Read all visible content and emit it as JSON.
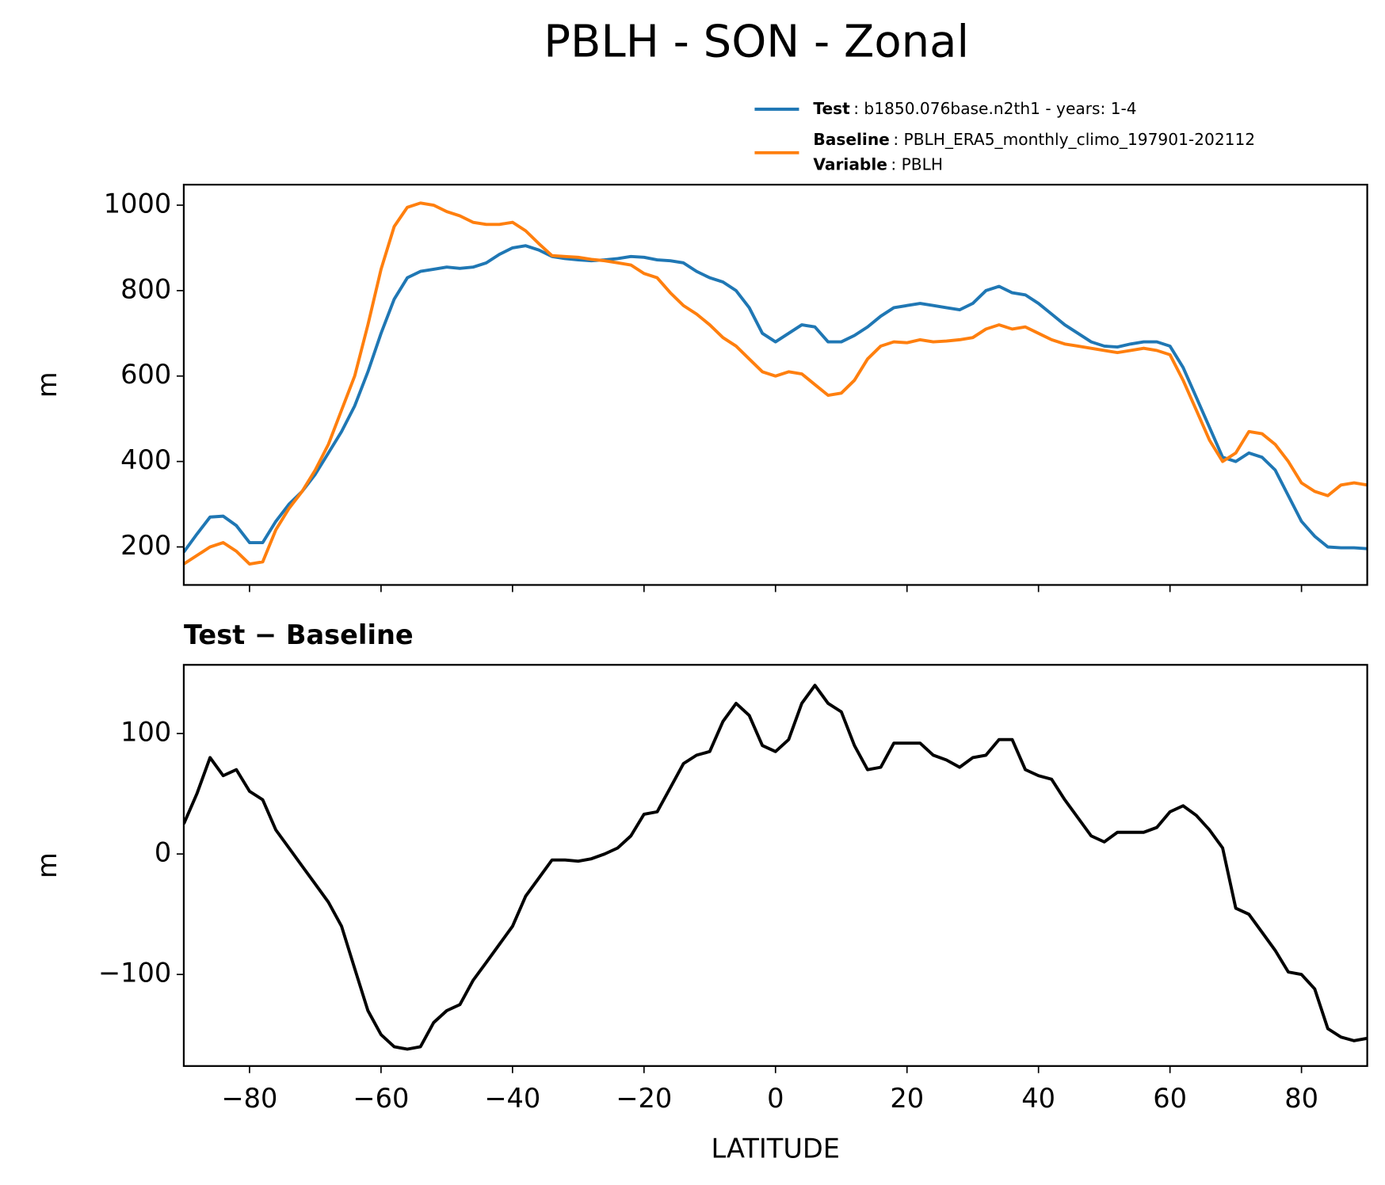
{
  "title": "PBLH - SON - Zonal",
  "chart_data": [
    {
      "type": "line",
      "ylabel": "m",
      "x": [
        -90,
        -88,
        -86,
        -84,
        -82,
        -80,
        -78,
        -76,
        -74,
        -72,
        -70,
        -68,
        -66,
        -64,
        -62,
        -60,
        -58,
        -56,
        -54,
        -52,
        -50,
        -48,
        -46,
        -44,
        -42,
        -40,
        -38,
        -36,
        -34,
        -32,
        -30,
        -28,
        -26,
        -24,
        -22,
        -20,
        -18,
        -16,
        -14,
        -12,
        -10,
        -8,
        -6,
        -4,
        -2,
        0,
        2,
        4,
        6,
        8,
        10,
        12,
        14,
        16,
        18,
        20,
        22,
        24,
        26,
        28,
        30,
        32,
        34,
        36,
        38,
        40,
        42,
        44,
        46,
        48,
        50,
        52,
        54,
        56,
        58,
        60,
        62,
        64,
        66,
        68,
        70,
        72,
        74,
        76,
        78,
        80,
        82,
        84,
        86,
        88,
        90
      ],
      "series": [
        {
          "name": "Test",
          "detail": ": b1850.076base.n2th1 - years: 1-4",
          "color": "#1f77b4",
          "values": [
            188,
            230,
            270,
            272,
            250,
            210,
            210,
            260,
            300,
            330,
            370,
            420,
            470,
            530,
            610,
            700,
            780,
            830,
            845,
            850,
            855,
            852,
            855,
            865,
            885,
            900,
            905,
            895,
            880,
            875,
            872,
            870,
            872,
            875,
            880,
            878,
            872,
            870,
            865,
            845,
            830,
            820,
            800,
            760,
            700,
            680,
            700,
            720,
            715,
            680,
            680,
            695,
            715,
            740,
            760,
            765,
            770,
            765,
            760,
            755,
            770,
            800,
            810,
            795,
            790,
            770,
            745,
            720,
            700,
            680,
            670,
            668,
            675,
            680,
            680,
            670,
            620,
            550,
            480,
            410,
            400,
            420,
            410,
            380,
            320,
            260,
            225,
            200,
            198,
            198,
            196
          ]
        },
        {
          "name": "Baseline",
          "detail": ": PBLH_ERA5_monthly_climo_197901-202112",
          "color": "#ff7f0e",
          "values": [
            160,
            180,
            200,
            210,
            190,
            160,
            165,
            240,
            290,
            330,
            380,
            440,
            520,
            600,
            720,
            850,
            950,
            995,
            1005,
            1000,
            985,
            975,
            960,
            955,
            955,
            960,
            940,
            910,
            882,
            880,
            878,
            873,
            870,
            865,
            860,
            840,
            830,
            795,
            765,
            745,
            720,
            690,
            670,
            640,
            610,
            600,
            610,
            605,
            580,
            555,
            560,
            590,
            640,
            670,
            680,
            678,
            685,
            680,
            682,
            685,
            690,
            710,
            720,
            710,
            715,
            700,
            685,
            675,
            670,
            665,
            660,
            655,
            660,
            665,
            660,
            650,
            590,
            520,
            450,
            400,
            420,
            470,
            465,
            440,
            400,
            350,
            330,
            320,
            345,
            350,
            345
          ]
        }
      ],
      "legend_extra": {
        "name": "Variable",
        "detail": ": PBLH"
      },
      "xlim": [
        -90,
        90
      ],
      "xticks": [
        -80,
        -60,
        -40,
        -20,
        0,
        20,
        40,
        60,
        80
      ],
      "ylim": [
        111,
        1048
      ],
      "yticks": [
        200,
        400,
        600,
        800,
        1000
      ]
    },
    {
      "type": "line",
      "title": "Test − Baseline",
      "xlabel": "LATITUDE",
      "ylabel": "m",
      "x": [
        -90,
        -88,
        -86,
        -84,
        -82,
        -80,
        -78,
        -76,
        -74,
        -72,
        -70,
        -68,
        -66,
        -64,
        -62,
        -60,
        -58,
        -56,
        -54,
        -52,
        -50,
        -48,
        -46,
        -44,
        -42,
        -40,
        -38,
        -36,
        -34,
        -32,
        -30,
        -28,
        -26,
        -24,
        -22,
        -20,
        -18,
        -16,
        -14,
        -12,
        -10,
        -8,
        -6,
        -4,
        -2,
        0,
        2,
        4,
        6,
        8,
        10,
        12,
        14,
        16,
        18,
        20,
        22,
        24,
        26,
        28,
        30,
        32,
        34,
        36,
        38,
        40,
        42,
        44,
        46,
        48,
        50,
        52,
        54,
        56,
        58,
        60,
        62,
        64,
        66,
        68,
        70,
        72,
        74,
        76,
        78,
        80,
        82,
        84,
        86,
        88,
        90
      ],
      "series": [
        {
          "color": "#000000",
          "values": [
            25,
            50,
            80,
            65,
            70,
            52,
            45,
            20,
            5,
            -10,
            -25,
            -40,
            -60,
            -95,
            -130,
            -150,
            -160,
            -162,
            -160,
            -140,
            -130,
            -125,
            -105,
            -90,
            -75,
            -60,
            -35,
            -20,
            -5,
            -5,
            -6,
            -4,
            0,
            5,
            15,
            33,
            35,
            55,
            75,
            82,
            85,
            110,
            125,
            115,
            90,
            85,
            95,
            125,
            140,
            125,
            118,
            90,
            70,
            72,
            92,
            92,
            92,
            82,
            78,
            72,
            80,
            82,
            95,
            95,
            70,
            65,
            62,
            45,
            30,
            15,
            10,
            18,
            18,
            18,
            22,
            35,
            40,
            32,
            20,
            5,
            -45,
            -50,
            -65,
            -80,
            -98,
            -100,
            -112,
            -145,
            -152,
            -155,
            -153
          ]
        }
      ],
      "xlim": [
        -90,
        90
      ],
      "xticks": [
        {
          "value": -80,
          "label": "−80"
        },
        {
          "value": -60,
          "label": "−60"
        },
        {
          "value": -40,
          "label": "−40"
        },
        {
          "value": -20,
          "label": "−20"
        },
        0,
        20,
        40,
        60,
        80
      ],
      "ylim": [
        -176,
        157
      ],
      "yticks": [
        {
          "value": -100,
          "label": "−100"
        },
        0,
        100
      ]
    }
  ]
}
